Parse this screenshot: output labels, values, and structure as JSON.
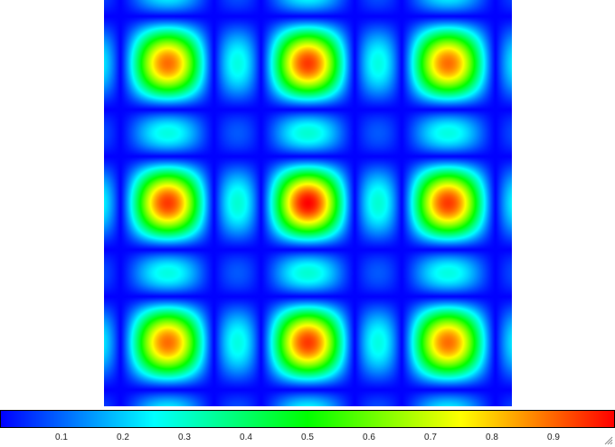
{
  "chart_data": {
    "type": "heatmap",
    "title": "",
    "xlabel": "",
    "ylabel": "",
    "pattern": "separable diffraction-grating intensity, 3x3 grid of principal maxima with secondary maxima between",
    "principal_maxima_grid": [
      [
        0.75,
        0.85,
        0.75
      ],
      [
        0.9,
        1.0,
        0.9
      ],
      [
        0.75,
        0.85,
        0.75
      ]
    ],
    "value_range": [
      0,
      1
    ],
    "colormap": [
      "#0000ff",
      "#00ffff",
      "#00ff00",
      "#ffff00",
      "#ff0000"
    ],
    "colorbar": {
      "orientation": "horizontal",
      "tick_labels": [
        "0.1",
        "0.2",
        "0.3",
        "0.4",
        "0.5",
        "0.6",
        "0.7",
        "0.8",
        "0.9"
      ],
      "tick_values": [
        0.1,
        0.2,
        0.3,
        0.4,
        0.5,
        0.6,
        0.7,
        0.8,
        0.9
      ]
    }
  }
}
